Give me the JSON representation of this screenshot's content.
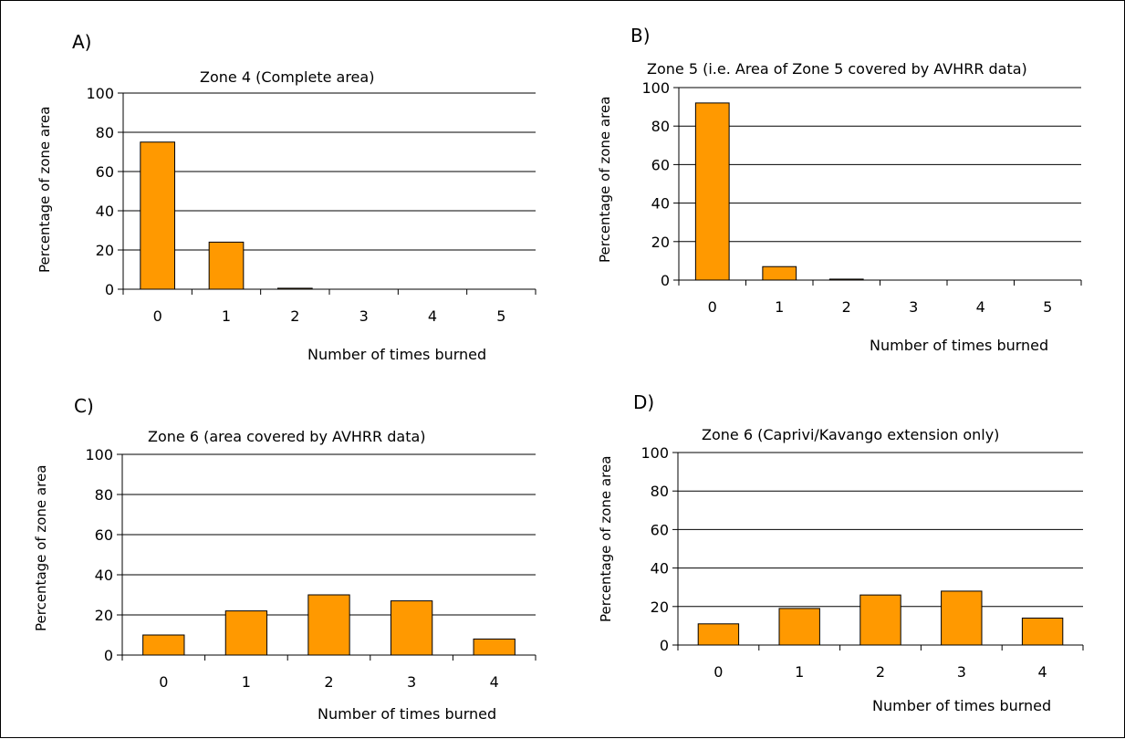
{
  "colors": {
    "bar_fill": "#FF9900",
    "bar_stroke": "#000000",
    "grid": "#000000"
  },
  "chart_data": [
    {
      "panel": "A)",
      "type": "bar",
      "title": "Zone 4 (Complete area)",
      "xlabel": "Number of times burned",
      "ylabel": "Percentage of zone area",
      "categories": [
        "0",
        "1",
        "2",
        "3",
        "4",
        "5"
      ],
      "values": [
        75,
        24,
        0.5,
        0,
        0,
        0
      ],
      "ylim": [
        0,
        100
      ],
      "yticks": [
        "0",
        "20",
        "40",
        "60",
        "80",
        "100"
      ],
      "grid": true,
      "legend": "none"
    },
    {
      "panel": "B)",
      "type": "bar",
      "title": "Zone 5 (i.e. Area of Zone 5 covered by AVHRR data)",
      "xlabel": "Number of times burned",
      "ylabel": "Percentage of zone area",
      "categories": [
        "0",
        "1",
        "2",
        "3",
        "4",
        "5"
      ],
      "values": [
        92,
        7,
        0.5,
        0,
        0,
        0
      ],
      "ylim": [
        0,
        100
      ],
      "yticks": [
        "0",
        "20",
        "40",
        "60",
        "80",
        "100"
      ],
      "grid": true,
      "legend": "none"
    },
    {
      "panel": "C)",
      "type": "bar",
      "title": "Zone 6 (area covered by AVHRR data)",
      "xlabel": "Number of times burned",
      "ylabel": "Percentage of zone area",
      "categories": [
        "0",
        "1",
        "2",
        "3",
        "4"
      ],
      "values": [
        10,
        22,
        30,
        27,
        8
      ],
      "ylim": [
        0,
        100
      ],
      "yticks": [
        "0",
        "20",
        "40",
        "60",
        "80",
        "100"
      ],
      "grid": true,
      "legend": "none"
    },
    {
      "panel": "D)",
      "type": "bar",
      "title": "Zone 6 (Caprivi/Kavango extension only)",
      "xlabel": "Number of times burned",
      "ylabel": "Percentage of zone area",
      "categories": [
        "0",
        "1",
        "2",
        "3",
        "4"
      ],
      "values": [
        11,
        19,
        26,
        28,
        14
      ],
      "ylim": [
        0,
        100
      ],
      "yticks": [
        "0",
        "20",
        "40",
        "60",
        "80",
        "100"
      ],
      "grid": true,
      "legend": "none"
    }
  ]
}
